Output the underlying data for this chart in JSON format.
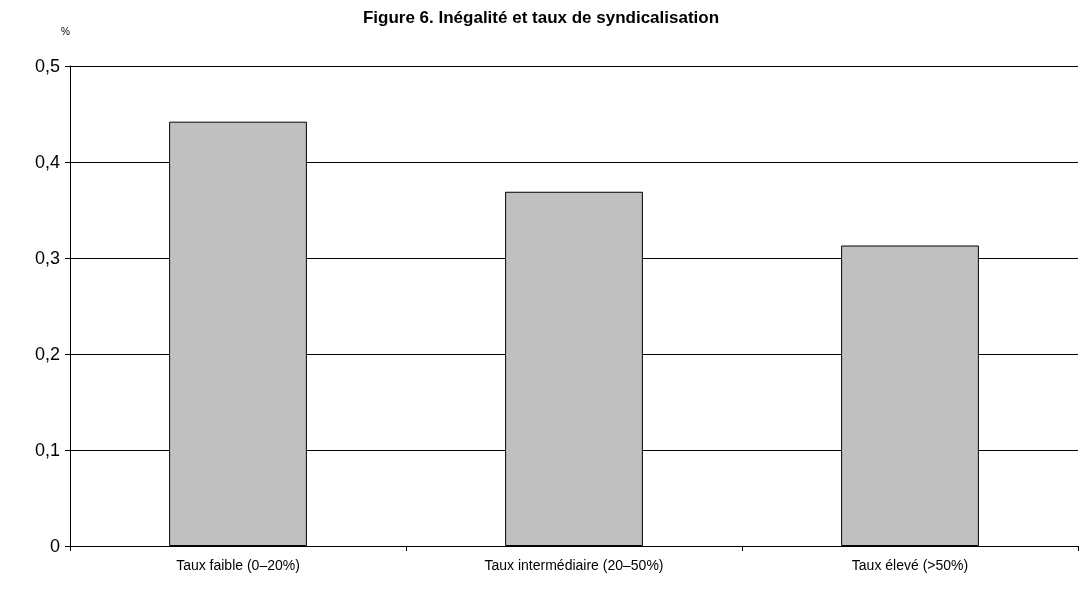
{
  "chart_data": {
    "type": "bar",
    "title": "Figure 6. Inégalité et taux de syndicalisation",
    "ylabel": "%",
    "categories": [
      "Taux faible (0–20%)",
      "Taux intermédiaire (20–50%)",
      "Taux élevé (>50%)"
    ],
    "values": [
      0.442,
      0.369,
      0.313
    ],
    "color": "#c0c0c0",
    "ylim": [
      0,
      0.5
    ],
    "yticks": [
      0,
      {
        "value": 0.1,
        "label": "0,1"
      },
      {
        "value": 0.2,
        "label": "0,2"
      },
      {
        "value": 0.3,
        "label": "0,3"
      },
      {
        "value": 0.4,
        "label": "0,4"
      },
      {
        "value": 0.5,
        "label": "0,5"
      }
    ],
    "grid": "y"
  }
}
